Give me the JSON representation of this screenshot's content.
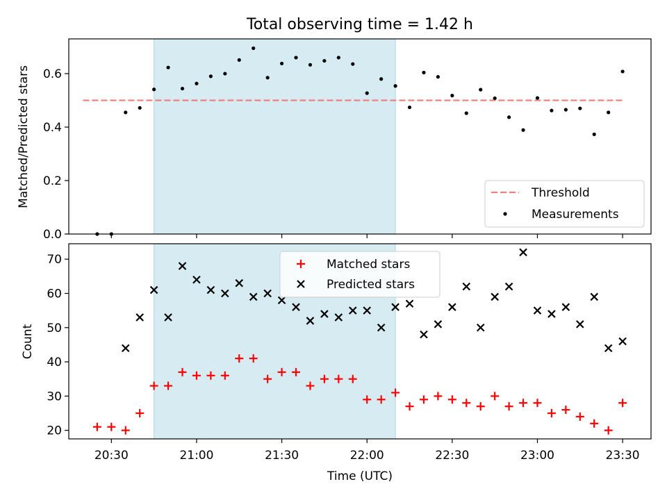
{
  "chart_data": [
    {
      "type": "scatter",
      "title": "Total observing time = 1.42 h",
      "xlabel": "",
      "ylabel": "Matched/Predicted stars",
      "x_axis": "time_utc",
      "xlim": [
        "20:15",
        "23:40"
      ],
      "ylim": [
        0,
        0.73
      ],
      "yticks": [
        "0.0",
        "0.2",
        "0.4",
        "0.6"
      ],
      "shaded_interval": [
        "20:45",
        "22:10"
      ],
      "shaded_color": "#add8e6",
      "threshold": {
        "name": "Threshold",
        "value": 0.5,
        "x_range": [
          "20:20",
          "23:30"
        ],
        "color": "#f08080",
        "style": "dashed"
      },
      "legend_position": "lower right",
      "series": [
        {
          "name": "Measurements",
          "color": "#000000",
          "marker": "dot",
          "x": [
            "20:25",
            "20:30",
            "20:35",
            "20:40",
            "20:45",
            "20:50",
            "20:55",
            "21:00",
            "21:05",
            "21:10",
            "21:15",
            "21:20",
            "21:25",
            "21:30",
            "21:35",
            "21:40",
            "21:45",
            "21:50",
            "21:55",
            "22:00",
            "22:05",
            "22:10",
            "22:15",
            "22:20",
            "22:25",
            "22:30",
            "22:35",
            "22:40",
            "22:45",
            "22:50",
            "22:55",
            "23:00",
            "23:05",
            "23:10",
            "23:15",
            "23:20",
            "23:25",
            "23:30"
          ],
          "y": [
            0.0,
            0.0,
            0.455,
            0.472,
            0.541,
            0.623,
            0.544,
            0.563,
            0.59,
            0.6,
            0.651,
            0.695,
            0.585,
            0.638,
            0.66,
            0.633,
            0.648,
            0.66,
            0.636,
            0.527,
            0.58,
            0.554,
            0.474,
            0.604,
            0.588,
            0.518,
            0.452,
            0.54,
            0.508,
            0.437,
            0.389,
            0.509,
            0.462,
            0.465,
            0.47,
            0.373,
            0.455,
            0.608
          ]
        }
      ]
    },
    {
      "type": "scatter",
      "title": "",
      "xlabel": "Time (UTC)",
      "ylabel": "Count",
      "x_axis": "time_utc",
      "xlim": [
        "20:15",
        "23:40"
      ],
      "ylim": [
        17.5,
        74.5
      ],
      "xticks": [
        "20:30",
        "21:00",
        "21:30",
        "22:00",
        "22:30",
        "23:00",
        "23:30"
      ],
      "yticks": [
        "20",
        "30",
        "40",
        "50",
        "60",
        "70"
      ],
      "shaded_interval": [
        "20:45",
        "22:10"
      ],
      "shaded_color": "#add8e6",
      "legend_position": "upper center",
      "series": [
        {
          "name": "Matched stars",
          "color": "#ff0000",
          "marker": "plus",
          "x": [
            "20:25",
            "20:30",
            "20:35",
            "20:40",
            "20:45",
            "20:50",
            "20:55",
            "21:00",
            "21:05",
            "21:10",
            "21:15",
            "21:20",
            "21:25",
            "21:30",
            "21:35",
            "21:40",
            "21:45",
            "21:50",
            "21:55",
            "22:00",
            "22:05",
            "22:10",
            "22:15",
            "22:20",
            "22:25",
            "22:30",
            "22:35",
            "22:40",
            "22:45",
            "22:50",
            "22:55",
            "23:00",
            "23:05",
            "23:10",
            "23:15",
            "23:20",
            "23:25",
            "23:30"
          ],
          "y": [
            21,
            21,
            20,
            25,
            33,
            33,
            37,
            36,
            36,
            36,
            41,
            41,
            35,
            37,
            37,
            33,
            35,
            35,
            35,
            29,
            29,
            31,
            27,
            29,
            30,
            29,
            28,
            27,
            30,
            27,
            28,
            28,
            25,
            26,
            24,
            22,
            20,
            28
          ]
        },
        {
          "name": "Predicted stars",
          "color": "#000000",
          "marker": "x",
          "x": [
            "20:35",
            "20:40",
            "20:45",
            "20:50",
            "20:55",
            "21:00",
            "21:05",
            "21:10",
            "21:15",
            "21:20",
            "21:25",
            "21:30",
            "21:35",
            "21:40",
            "21:45",
            "21:50",
            "21:55",
            "22:00",
            "22:05",
            "22:10",
            "22:15",
            "22:20",
            "22:25",
            "22:30",
            "22:35",
            "22:40",
            "22:45",
            "22:50",
            "22:55",
            "23:00",
            "23:05",
            "23:10",
            "23:15",
            "23:20",
            "23:25",
            "23:30"
          ],
          "y": [
            44,
            53,
            61,
            53,
            68,
            64,
            61,
            60,
            63,
            59,
            60,
            58,
            56,
            52,
            54,
            53,
            55,
            55,
            50,
            56,
            57,
            48,
            51,
            56,
            62,
            50,
            59,
            62,
            72,
            55,
            54,
            56,
            51,
            59,
            44,
            46
          ]
        }
      ]
    }
  ]
}
